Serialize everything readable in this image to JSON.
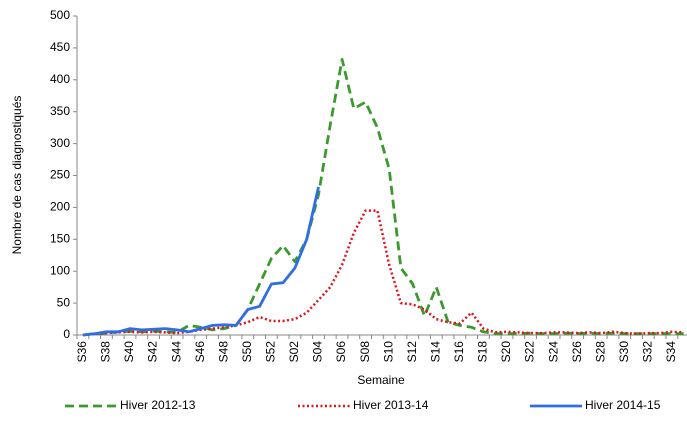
{
  "chart_data": {
    "type": "line",
    "y_label": "Nombre de cas diagnostiqués",
    "x_label": "Semaine",
    "categories": [
      "S36",
      null,
      "S38",
      null,
      "S40",
      null,
      "S42",
      null,
      "S44",
      null,
      "S46",
      null,
      "S48",
      null,
      "S50",
      null,
      "S52",
      null,
      "S02",
      null,
      "S04",
      null,
      "S06",
      null,
      "S08",
      null,
      "S10",
      null,
      "S12",
      null,
      "S14",
      null,
      "S16",
      null,
      "S18",
      null,
      "S20",
      null,
      "S22",
      null,
      "S24",
      null,
      "S26",
      null,
      "S28",
      null,
      "S30",
      null,
      "S32",
      null,
      "S34",
      null
    ],
    "series": [
      {
        "name": "Hiver 2012-13",
        "color": "#3a9a2e",
        "dash": "dashed",
        "values": [
          0,
          2,
          3,
          5,
          6,
          5,
          6,
          5,
          4,
          15,
          12,
          8,
          10,
          15,
          40,
          80,
          120,
          140,
          115,
          150,
          220,
          330,
          432,
          355,
          365,
          325,
          260,
          105,
          80,
          30,
          75,
          20,
          15,
          12,
          5,
          2,
          2,
          2,
          3,
          2,
          2,
          3,
          2,
          3,
          2,
          3,
          2,
          2,
          2,
          2,
          2,
          2
        ]
      },
      {
        "name": "Hiver 2013-14",
        "color": "#e0121b",
        "dash": "dotted",
        "values": [
          0,
          2,
          3,
          4,
          5,
          4,
          5,
          4,
          3,
          5,
          8,
          10,
          12,
          15,
          20,
          28,
          22,
          22,
          25,
          35,
          55,
          75,
          110,
          160,
          195,
          195,
          110,
          50,
          48,
          40,
          25,
          20,
          18,
          35,
          10,
          4,
          5,
          4,
          3,
          3,
          4,
          4,
          3,
          4,
          3,
          5,
          3,
          2,
          3,
          3,
          5,
          4
        ]
      },
      {
        "name": "Hiver 2014-15",
        "color": "#2f6de8",
        "dash": "solid",
        "values": [
          0,
          2,
          5,
          5,
          10,
          8,
          9,
          10,
          8,
          5,
          10,
          15,
          16,
          15,
          40,
          45,
          80,
          82,
          105,
          150,
          232,
          null,
          null,
          null,
          null,
          null,
          null,
          null,
          null,
          null,
          null,
          null,
          null,
          null,
          null,
          null,
          null,
          null,
          null,
          null,
          null,
          null,
          null,
          null,
          null,
          null,
          null,
          null,
          null,
          null,
          null,
          null
        ]
      }
    ],
    "ylim": [
      0,
      500
    ],
    "yticks": [
      0,
      50,
      100,
      150,
      200,
      250,
      300,
      350,
      400,
      450,
      500
    ],
    "legend": "bottom"
  }
}
